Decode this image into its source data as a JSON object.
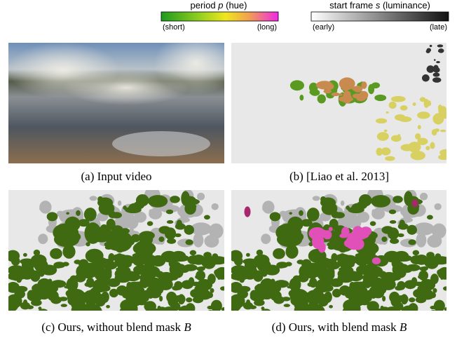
{
  "legend_period": {
    "title": [
      "period ",
      "p",
      " (hue)"
    ],
    "low": "(short)",
    "high": "(long)"
  },
  "legend_start": {
    "title": [
      "start frame ",
      "s",
      " (luminance)"
    ],
    "low": "(early)",
    "high": "(late)"
  },
  "panels": [
    {
      "caption": [
        "(a) Input video"
      ]
    },
    {
      "caption": [
        "(b) [Liao et al. 2013]"
      ]
    },
    {
      "caption": [
        "(c) Ours, without blend mask ",
        "B"
      ]
    },
    {
      "caption": [
        "(d) Ours, with blend mask ",
        "B"
      ]
    }
  ]
}
